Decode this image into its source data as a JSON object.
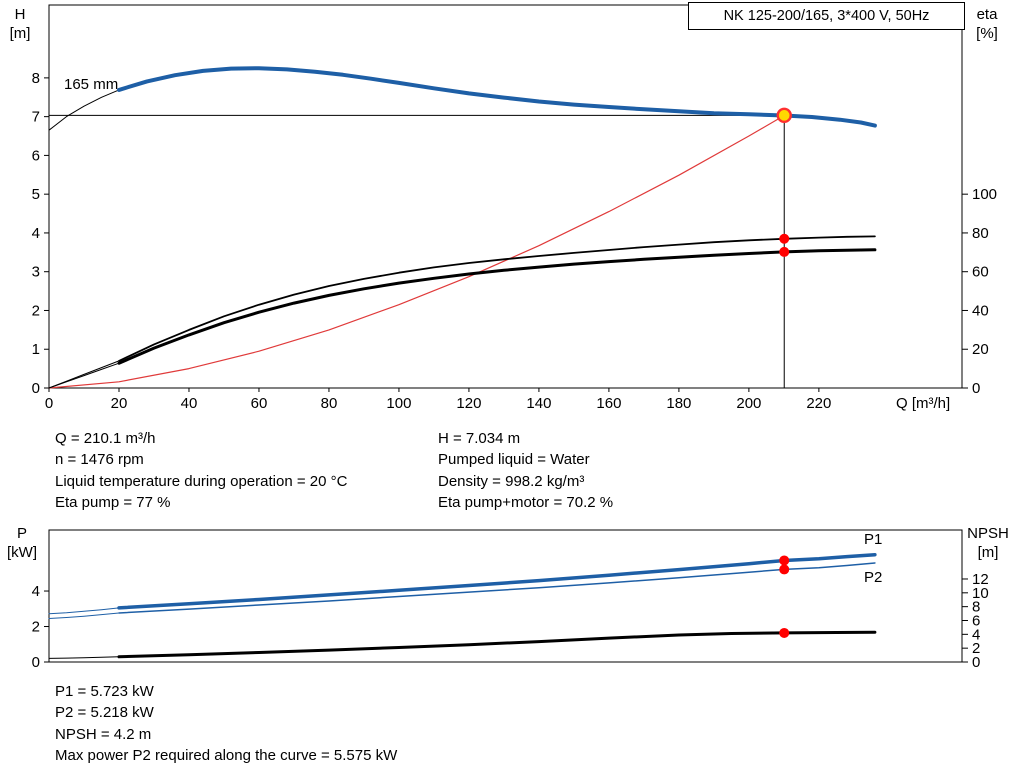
{
  "title_box": "NK 125-200/165, 3*400 V, 50Hz",
  "labels": {
    "h_axis": [
      "H",
      "[m]"
    ],
    "eta_axis": [
      "eta",
      "[%]"
    ],
    "p_axis": [
      "P",
      "[kW]"
    ],
    "npsh_axis": [
      "NPSH",
      "[m]"
    ],
    "q_axis": "Q [m³/h]",
    "impeller": "165 mm",
    "p1": "P1",
    "p2": "P2"
  },
  "colors": {
    "blue": "#1e5fa6",
    "black": "#000000",
    "red": "#e03a3a",
    "dot_red": "#ff0000",
    "duty_fill": "#ffd800",
    "duty_ring": "#ff3030"
  },
  "info_top": {
    "left": [
      "Q = 210.1 m³/h",
      "n = 1476 rpm",
      "Liquid temperature during operation = 20 °C",
      "Eta pump = 77 %"
    ],
    "right": [
      "H = 7.034 m",
      "Pumped liquid = Water",
      "Density = 998.2 kg/m³",
      "Eta pump+motor = 70.2 %"
    ]
  },
  "info_bottom": [
    "P1 = 5.723 kW",
    "P2 = 5.218 kW",
    "NPSH = 4.2 m",
    "Max power P2 required along the curve = 5.575 kW"
  ],
  "chart_data": [
    {
      "type": "line",
      "name": "hq-chart",
      "title": "NK 125-200/165, 3*400 V, 50Hz",
      "xlabel": "Q [m³/h]",
      "ylabel_left": "H [m]",
      "ylabel_right": "eta [%]",
      "xlim": [
        0,
        260.9
      ],
      "ylim_left": [
        0,
        9.88
      ],
      "ylim_right": [
        0,
        197.6
      ],
      "x_ticks": [
        0,
        20,
        40,
        60,
        80,
        100,
        120,
        140,
        160,
        180,
        200,
        220
      ],
      "x_tick_labels": true,
      "y_ticks_left": [
        0,
        1,
        2,
        3,
        4,
        5,
        6,
        7,
        8
      ],
      "y_ticks_right": [
        0,
        20,
        40,
        60,
        80,
        100
      ],
      "duty_point": {
        "q": 210.1,
        "h": 7.034
      },
      "series": [
        {
          "name": "pump-curve-extension",
          "axis": "left",
          "color": "black",
          "width": 1,
          "points": [
            [
              0,
              6.65
            ],
            [
              5,
              7.0
            ],
            [
              10,
              7.27
            ],
            [
              15,
              7.5
            ],
            [
              20,
              7.69
            ]
          ]
        },
        {
          "name": "system-curve",
          "axis": "left",
          "color": "red",
          "width": 1.2,
          "points": [
            [
              0,
              0
            ],
            [
              20,
              0.16
            ],
            [
              40,
              0.5
            ],
            [
              60,
              0.95
            ],
            [
              80,
              1.5
            ],
            [
              100,
              2.15
            ],
            [
              120,
              2.87
            ],
            [
              140,
              3.67
            ],
            [
              160,
              4.55
            ],
            [
              180,
              5.49
            ],
            [
              200,
              6.5
            ],
            [
              210.1,
              7.03
            ]
          ]
        },
        {
          "name": "pump-curve-165mm",
          "axis": "left",
          "color": "blue",
          "width": 4,
          "points": [
            [
              20,
              7.69
            ],
            [
              28,
              7.91
            ],
            [
              36,
              8.07
            ],
            [
              44,
              8.18
            ],
            [
              52,
              8.24
            ],
            [
              60,
              8.25
            ],
            [
              68,
              8.22
            ],
            [
              76,
              8.16
            ],
            [
              84,
              8.08
            ],
            [
              92,
              7.98
            ],
            [
              100,
              7.87
            ],
            [
              110,
              7.73
            ],
            [
              120,
              7.6
            ],
            [
              130,
              7.49
            ],
            [
              140,
              7.39
            ],
            [
              150,
              7.31
            ],
            [
              160,
              7.25
            ],
            [
              170,
              7.19
            ],
            [
              180,
              7.14
            ],
            [
              190,
              7.09
            ],
            [
              200,
              7.06
            ],
            [
              210.1,
              7.03
            ],
            [
              218,
              6.99
            ],
            [
              226,
              6.92
            ],
            [
              232,
              6.85
            ],
            [
              236,
              6.77
            ]
          ]
        },
        {
          "name": "eta-pump-extension",
          "axis": "right",
          "color": "black",
          "width": 1,
          "points": [
            [
              0,
              0
            ],
            [
              5,
              3.5
            ],
            [
              10,
              7
            ],
            [
              15,
              10.5
            ],
            [
              20,
              14
            ]
          ]
        },
        {
          "name": "eta-pump",
          "axis": "right",
          "color": "black",
          "width": 1.8,
          "points": [
            [
              20,
              14
            ],
            [
              30,
              22.5
            ],
            [
              40,
              30
            ],
            [
              50,
              37
            ],
            [
              60,
              43
            ],
            [
              70,
              48.2
            ],
            [
              80,
              52.6
            ],
            [
              90,
              56.3
            ],
            [
              100,
              59.5
            ],
            [
              110,
              62.2
            ],
            [
              120,
              64.5
            ],
            [
              130,
              66.4
            ],
            [
              140,
              68.1
            ],
            [
              150,
              69.7
            ],
            [
              160,
              71.2
            ],
            [
              170,
              72.7
            ],
            [
              180,
              74
            ],
            [
              190,
              75.2
            ],
            [
              200,
              76.2
            ],
            [
              210.1,
              77
            ],
            [
              220,
              77.6
            ],
            [
              228,
              78
            ],
            [
              236,
              78.2
            ]
          ]
        },
        {
          "name": "eta-pump-motor-extension",
          "axis": "right",
          "color": "black",
          "width": 1,
          "points": [
            [
              0,
              0
            ],
            [
              5,
              3.2
            ],
            [
              10,
              6.4
            ],
            [
              15,
              9.6
            ],
            [
              20,
              12.8
            ]
          ]
        },
        {
          "name": "eta-pump-motor",
          "axis": "right",
          "color": "black",
          "width": 3,
          "points": [
            [
              20,
              12.8
            ],
            [
              30,
              20.6
            ],
            [
              40,
              27.4
            ],
            [
              50,
              33.7
            ],
            [
              60,
              39.1
            ],
            [
              70,
              43.8
            ],
            [
              80,
              47.8
            ],
            [
              90,
              51.2
            ],
            [
              100,
              54.1
            ],
            [
              110,
              56.6
            ],
            [
              120,
              58.8
            ],
            [
              130,
              60.7
            ],
            [
              140,
              62.4
            ],
            [
              150,
              63.9
            ],
            [
              160,
              65.2
            ],
            [
              170,
              66.4
            ],
            [
              180,
              67.5
            ],
            [
              190,
              68.5
            ],
            [
              200,
              69.4
            ],
            [
              210.1,
              70.2
            ],
            [
              220,
              70.8
            ],
            [
              228,
              71.1
            ],
            [
              236,
              71.3
            ]
          ]
        }
      ],
      "markers": [
        {
          "name": "duty-point-marker",
          "axis": "left",
          "q": 210.1,
          "value": 7.034,
          "style": "duty"
        },
        {
          "name": "eta-pump-duty-dot",
          "axis": "right",
          "q": 210.1,
          "value": 77,
          "style": "dot"
        },
        {
          "name": "eta-pump-motor-duty-dot",
          "axis": "right",
          "q": 210.1,
          "value": 70.2,
          "style": "dot"
        }
      ]
    },
    {
      "type": "line",
      "name": "power-chart",
      "xlabel": "Q [m³/h]",
      "ylabel_left": "P [kW]",
      "ylabel_right": "NPSH [m]",
      "xlim": [
        0,
        260.9
      ],
      "ylim_left": [
        0,
        7.44
      ],
      "ylim_right": [
        0,
        19.08
      ],
      "x_ticks": [],
      "x_tick_labels": false,
      "y_ticks_left": [
        0,
        2,
        4
      ],
      "y_ticks_right": [
        0,
        2,
        4,
        6,
        8,
        10,
        12
      ],
      "series": [
        {
          "name": "p1-extension",
          "axis": "left",
          "color": "blue",
          "width": 1,
          "points": [
            [
              0,
              2.72
            ],
            [
              5,
              2.78
            ],
            [
              10,
              2.86
            ],
            [
              15,
              2.95
            ],
            [
              20,
              3.05
            ]
          ]
        },
        {
          "name": "p1-curve",
          "axis": "left",
          "color": "blue",
          "width": 3.5,
          "points": [
            [
              20,
              3.05
            ],
            [
              40,
              3.28
            ],
            [
              60,
              3.52
            ],
            [
              80,
              3.78
            ],
            [
              100,
              4.04
            ],
            [
              120,
              4.31
            ],
            [
              140,
              4.59
            ],
            [
              160,
              4.89
            ],
            [
              180,
              5.21
            ],
            [
              200,
              5.54
            ],
            [
              210.1,
              5.72
            ],
            [
              220,
              5.82
            ],
            [
              228,
              5.94
            ],
            [
              236,
              6.05
            ]
          ]
        },
        {
          "name": "p2-extension",
          "axis": "left",
          "color": "blue",
          "width": 1,
          "points": [
            [
              0,
              2.45
            ],
            [
              5,
              2.51
            ],
            [
              10,
              2.58
            ],
            [
              15,
              2.67
            ],
            [
              20,
              2.76
            ]
          ]
        },
        {
          "name": "p2-curve",
          "axis": "left",
          "color": "blue",
          "width": 1.5,
          "points": [
            [
              20,
              2.76
            ],
            [
              40,
              2.98
            ],
            [
              60,
              3.21
            ],
            [
              80,
              3.44
            ],
            [
              100,
              3.69
            ],
            [
              120,
              3.94
            ],
            [
              140,
              4.19
            ],
            [
              160,
              4.46
            ],
            [
              180,
              4.75
            ],
            [
              200,
              5.06
            ],
            [
              210.1,
              5.22
            ],
            [
              220,
              5.31
            ],
            [
              228,
              5.44
            ],
            [
              236,
              5.58
            ]
          ]
        },
        {
          "name": "npsh-extension",
          "axis": "right",
          "color": "black",
          "width": 1,
          "points": [
            [
              0,
              0.52
            ],
            [
              5,
              0.57
            ],
            [
              10,
              0.62
            ],
            [
              15,
              0.68
            ],
            [
              20,
              0.75
            ]
          ]
        },
        {
          "name": "npsh-curve",
          "axis": "right",
          "color": "black",
          "width": 3,
          "points": [
            [
              20,
              0.75
            ],
            [
              40,
              1.05
            ],
            [
              60,
              1.38
            ],
            [
              80,
              1.72
            ],
            [
              100,
              2.1
            ],
            [
              120,
              2.5
            ],
            [
              140,
              2.95
            ],
            [
              160,
              3.45
            ],
            [
              180,
              3.9
            ],
            [
              195,
              4.12
            ],
            [
              210.1,
              4.2
            ],
            [
              225,
              4.26
            ],
            [
              236,
              4.3
            ]
          ]
        }
      ],
      "markers": [
        {
          "name": "p1-duty-dot",
          "axis": "left",
          "q": 210.1,
          "value": 5.723,
          "style": "dot"
        },
        {
          "name": "p2-duty-dot",
          "axis": "left",
          "q": 210.1,
          "value": 5.218,
          "style": "dot"
        },
        {
          "name": "npsh-duty-dot",
          "axis": "right",
          "q": 210.1,
          "value": 4.2,
          "style": "dot"
        }
      ]
    }
  ]
}
